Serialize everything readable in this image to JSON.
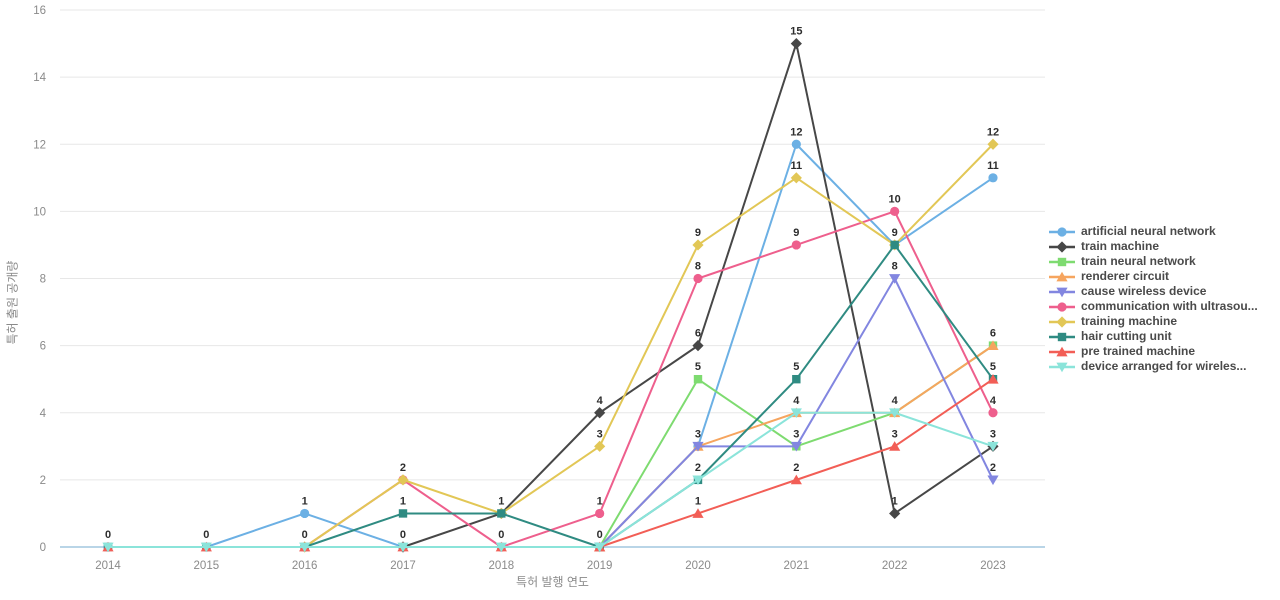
{
  "chart_data": {
    "type": "line",
    "title": "",
    "xlabel": "특허 발행 연도",
    "ylabel": "특허 출원 공개량",
    "x_categories": [
      "2014",
      "2015",
      "2016",
      "2017",
      "2018",
      "2019",
      "2020",
      "2021",
      "2022",
      "2023"
    ],
    "ylim": [
      0,
      16
    ],
    "yticks": [
      0,
      2,
      4,
      6,
      8,
      10,
      12,
      14,
      16
    ],
    "grid": "horizontal",
    "legend_position": "right",
    "point_labels_visible": true,
    "axis_colors": {
      "gridline": "#e7e7e7",
      "zero_axis_line": "#b9d5e7",
      "tick_label": "#8a8a8a",
      "point_label": "#2d2d2d"
    },
    "series": [
      {
        "name": "artificial neural network",
        "color": "#6cb0e4",
        "marker": "circle",
        "values": [
          0,
          0,
          1,
          0,
          0,
          0,
          3,
          12,
          9,
          11
        ]
      },
      {
        "name": "train machine",
        "color": "#474747",
        "marker": "diamond",
        "values": [
          null,
          null,
          null,
          0,
          1,
          4,
          6,
          15,
          1,
          3
        ]
      },
      {
        "name": "train neural network",
        "color": "#7edb70",
        "marker": "square",
        "values": [
          null,
          null,
          null,
          null,
          null,
          0,
          5,
          3,
          4,
          6
        ]
      },
      {
        "name": "renderer circuit",
        "color": "#f6a55f",
        "marker": "triangle-up",
        "values": [
          null,
          null,
          null,
          null,
          null,
          0,
          3,
          4,
          4,
          6
        ]
      },
      {
        "name": "cause wireless device",
        "color": "#8286e0",
        "marker": "triangle-down",
        "values": [
          null,
          null,
          null,
          null,
          null,
          0,
          3,
          3,
          8,
          2
        ]
      },
      {
        "name": "communication with ultrasou...",
        "color": "#ee5f8d",
        "marker": "circle",
        "values": [
          null,
          null,
          0,
          2,
          0,
          1,
          8,
          9,
          10,
          4
        ]
      },
      {
        "name": "training machine",
        "color": "#e2c756",
        "marker": "diamond",
        "values": [
          null,
          null,
          0,
          2,
          1,
          3,
          9,
          11,
          9,
          12
        ]
      },
      {
        "name": "hair cutting unit",
        "color": "#2f8b82",
        "marker": "square",
        "values": [
          0,
          0,
          0,
          1,
          1,
          0,
          2,
          5,
          9,
          5
        ]
      },
      {
        "name": "pre trained machine",
        "color": "#f25e56",
        "marker": "triangle-up",
        "values": [
          0,
          0,
          0,
          0,
          0,
          0,
          1,
          2,
          3,
          5
        ]
      },
      {
        "name": "device arranged for wireles...",
        "color": "#8be4da",
        "marker": "triangle-down",
        "values": [
          0,
          0,
          0,
          0,
          0,
          0,
          2,
          4,
          4,
          3
        ]
      }
    ]
  }
}
